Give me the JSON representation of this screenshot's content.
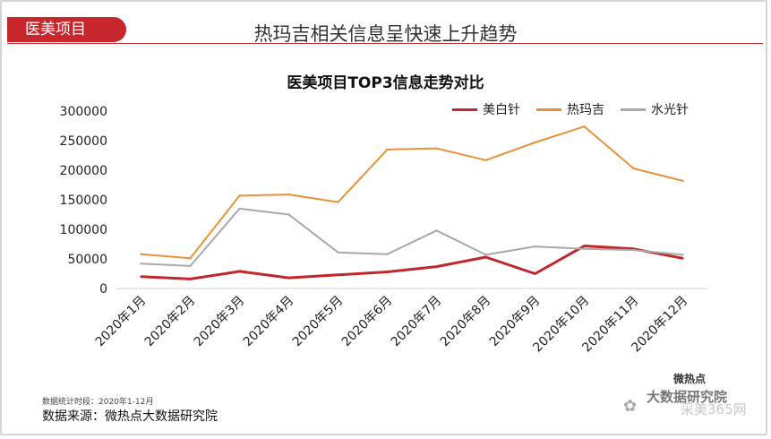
{
  "header": {
    "tag": "医美项目",
    "headline": "热玛吉相关信息呈快速上升趋势"
  },
  "chart_data": {
    "type": "line",
    "title": "医美项目TOP3信息走势对比",
    "xlabel": "",
    "ylabel": "",
    "ylim": [
      0,
      300000
    ],
    "yticks": [
      "0",
      "50000",
      "100000",
      "150000",
      "200000",
      "250000",
      "300000"
    ],
    "categories": [
      "2020年1月",
      "2020年2月",
      "2020年3月",
      "2020年4月",
      "2020年5月",
      "2020年6月",
      "2020年7月",
      "2020年8月",
      "2020年9月",
      "2020年10月",
      "2020年11月",
      "2020年12月"
    ],
    "legend_position": "top-right",
    "grid": false,
    "series": [
      {
        "name": "美白针",
        "color": "#c0272d",
        "values": [
          20000,
          16000,
          29000,
          18000,
          23000,
          28000,
          37000,
          53000,
          25000,
          72000,
          67000,
          51000
        ]
      },
      {
        "name": "热玛吉",
        "color": "#e8913c",
        "values": [
          58000,
          51000,
          157000,
          159000,
          146000,
          235000,
          237000,
          217000,
          247000,
          274000,
          203000,
          182000
        ]
      },
      {
        "name": "水光针",
        "color": "#a9a9a9",
        "values": [
          42000,
          38000,
          135000,
          125000,
          61000,
          58000,
          98000,
          57000,
          71000,
          67000,
          65000,
          57000
        ]
      }
    ]
  },
  "footer": {
    "note": "数据统计时段：2020年1-12月",
    "source": "数据来源：微热点大数据研究院"
  },
  "watermark": {
    "logo": "微热点",
    "text": "大数据研究院",
    "brand": "采美365网"
  }
}
